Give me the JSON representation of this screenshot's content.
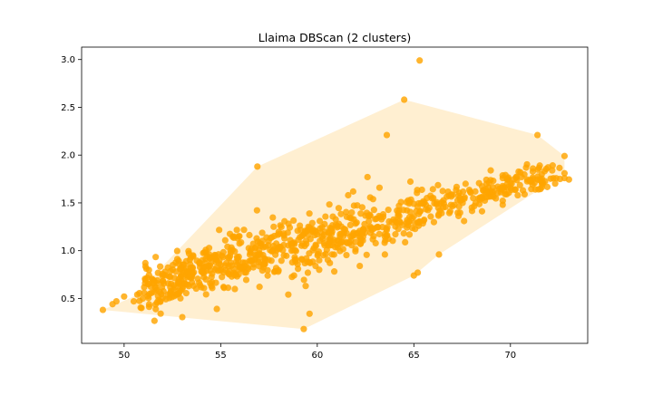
{
  "chart_data": {
    "type": "scatter",
    "title": "Llaima DBScan (2 clusters)",
    "xlabel": "",
    "ylabel": "",
    "xlim": [
      47.8,
      74.0
    ],
    "ylim": [
      0.03,
      3.13
    ],
    "xticks": [
      50,
      55,
      60,
      65,
      70
    ],
    "yticks": [
      0.5,
      1.0,
      1.5,
      2.0,
      2.5,
      3.0
    ],
    "ytick_labels": [
      "0.5",
      "1.0",
      "1.5",
      "2.0",
      "2.5",
      "3.0"
    ],
    "grid": false,
    "legend": "none",
    "colors": {
      "points": "#ffa500",
      "hull_fill": "#ffa500",
      "hull_fill_opacity": 0.18
    },
    "hull": [
      {
        "x": 48.9,
        "y": 0.38
      },
      {
        "x": 50.5,
        "y": 0.52
      },
      {
        "x": 56.9,
        "y": 1.88
      },
      {
        "x": 64.5,
        "y": 2.58
      },
      {
        "x": 71.4,
        "y": 2.21
      },
      {
        "x": 72.8,
        "y": 1.99
      },
      {
        "x": 72.8,
        "y": 1.81
      },
      {
        "x": 66.3,
        "y": 0.96
      },
      {
        "x": 65.0,
        "y": 0.74
      },
      {
        "x": 59.3,
        "y": 0.18
      },
      {
        "x": 48.9,
        "y": 0.38
      }
    ],
    "outliers": [
      {
        "x": 65.3,
        "y": 2.99
      },
      {
        "x": 64.5,
        "y": 2.58
      },
      {
        "x": 63.6,
        "y": 2.21
      },
      {
        "x": 71.4,
        "y": 2.21
      },
      {
        "x": 56.9,
        "y": 1.88
      },
      {
        "x": 72.8,
        "y": 1.99
      },
      {
        "x": 72.8,
        "y": 1.81
      },
      {
        "x": 62.6,
        "y": 1.77
      },
      {
        "x": 59.3,
        "y": 0.18
      },
      {
        "x": 59.6,
        "y": 0.34
      },
      {
        "x": 48.9,
        "y": 0.38
      },
      {
        "x": 49.4,
        "y": 0.44
      },
      {
        "x": 49.6,
        "y": 0.47
      },
      {
        "x": 50.0,
        "y": 0.52
      },
      {
        "x": 50.5,
        "y": 0.47
      },
      {
        "x": 51.1,
        "y": 0.87
      },
      {
        "x": 50.9,
        "y": 0.4
      },
      {
        "x": 54.8,
        "y": 0.39
      },
      {
        "x": 58.5,
        "y": 0.54
      },
      {
        "x": 59.4,
        "y": 0.63
      },
      {
        "x": 65.0,
        "y": 0.74
      },
      {
        "x": 65.2,
        "y": 0.77
      },
      {
        "x": 66.3,
        "y": 0.96
      },
      {
        "x": 67.6,
        "y": 1.31
      },
      {
        "x": 69.6,
        "y": 1.48
      },
      {
        "x": 61.6,
        "y": 1.58
      },
      {
        "x": 62.2,
        "y": 0.84
      },
      {
        "x": 60.1,
        "y": 0.8
      },
      {
        "x": 63.5,
        "y": 0.96
      }
    ],
    "band": {
      "description_for_density": "dense cluster of points along a rising band",
      "segments": [
        {
          "x_start": 51.0,
          "x_end": 56.0,
          "y_start": 0.58,
          "y_end": 0.92,
          "spread": 0.13,
          "count": 260
        },
        {
          "x_start": 56.0,
          "x_end": 61.0,
          "y_start": 0.92,
          "y_end": 1.15,
          "spread": 0.14,
          "count": 230
        },
        {
          "x_start": 61.0,
          "x_end": 66.0,
          "y_start": 1.15,
          "y_end": 1.43,
          "spread": 0.14,
          "count": 190
        },
        {
          "x_start": 66.0,
          "x_end": 72.6,
          "y_start": 1.45,
          "y_end": 1.82,
          "spread": 0.09,
          "count": 170
        }
      ]
    }
  }
}
